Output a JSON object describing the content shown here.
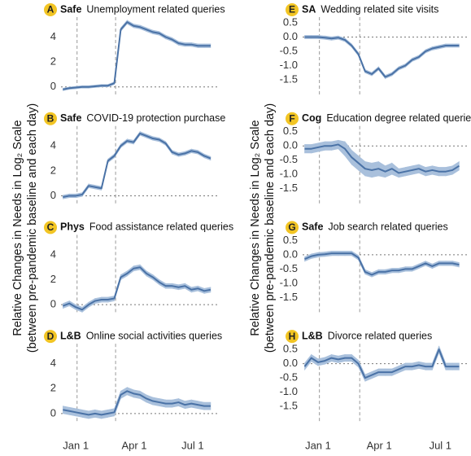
{
  "figure": {
    "ylabel": [
      "Relative Changes in Needs in Log₂ Scale",
      "(between pre-pandemic baseline and each day)"
    ]
  },
  "chart_data": [
    {
      "type": "line",
      "label": "A",
      "category": "Safe",
      "title": "Unemployment related queries",
      "color": "#4a72a6",
      "band_color": "#a9c0dc",
      "x": [
        -20,
        -10,
        0,
        10,
        20,
        30,
        40,
        50,
        60,
        70,
        80,
        90,
        100,
        110,
        120,
        130,
        140,
        150,
        160,
        170,
        180,
        190,
        200,
        210
      ],
      "values": [
        -0.2,
        -0.1,
        -0.05,
        0,
        0,
        0.05,
        0.1,
        0.1,
        0.3,
        4.6,
        5.2,
        4.9,
        4.8,
        4.6,
        4.4,
        4.3,
        4.0,
        3.8,
        3.5,
        3.4,
        3.4,
        3.3,
        3.3,
        3.3
      ],
      "errors": [
        0.1,
        0.1,
        0.1,
        0.1,
        0.1,
        0.1,
        0.1,
        0.1,
        0.1,
        0.15,
        0.15,
        0.15,
        0.15,
        0.15,
        0.15,
        0.15,
        0.15,
        0.15,
        0.15,
        0.15,
        0.15,
        0.15,
        0.15,
        0.15
      ],
      "xlim": [
        -23,
        224
      ],
      "ylim": [
        -0.8,
        5.6
      ],
      "yticks": [
        0,
        2,
        4
      ],
      "vlines": [
        2,
        62
      ],
      "hline": 0
    },
    {
      "type": "line",
      "label": "B",
      "category": "Safe",
      "title": "COVID-19 protection purchase",
      "color": "#4a72a6",
      "band_color": "#a9c0dc",
      "x": [
        -20,
        -10,
        0,
        10,
        20,
        30,
        40,
        50,
        60,
        70,
        80,
        90,
        100,
        110,
        120,
        130,
        140,
        150,
        160,
        170,
        180,
        190,
        200,
        210
      ],
      "values": [
        -0.1,
        0,
        0,
        0.1,
        0.8,
        0.7,
        0.6,
        2.8,
        3.2,
        4.0,
        4.4,
        4.3,
        5.0,
        4.8,
        4.6,
        4.5,
        4.2,
        3.5,
        3.3,
        3.4,
        3.6,
        3.5,
        3.2,
        3.0
      ],
      "errors": [
        0.15,
        0.15,
        0.15,
        0.15,
        0.15,
        0.15,
        0.15,
        0.15,
        0.15,
        0.15,
        0.15,
        0.15,
        0.15,
        0.15,
        0.15,
        0.15,
        0.15,
        0.15,
        0.15,
        0.15,
        0.15,
        0.15,
        0.15,
        0.15
      ],
      "xlim": [
        -23,
        224
      ],
      "ylim": [
        -0.8,
        5.6
      ],
      "yticks": [
        0,
        2,
        4
      ],
      "vlines": [
        2,
        62
      ],
      "hline": 0
    },
    {
      "type": "line",
      "label": "C",
      "category": "Phys",
      "title": "Food assistance related queries",
      "color": "#4a72a6",
      "band_color": "#a9c0dc",
      "x": [
        -20,
        -10,
        0,
        10,
        20,
        30,
        40,
        50,
        60,
        70,
        80,
        90,
        100,
        110,
        120,
        130,
        140,
        150,
        160,
        170,
        180,
        190,
        200,
        210
      ],
      "values": [
        -0.1,
        0.1,
        -0.2,
        -0.4,
        0,
        0.3,
        0.4,
        0.4,
        0.5,
        2.2,
        2.5,
        2.9,
        3.0,
        2.5,
        2.2,
        1.8,
        1.5,
        1.5,
        1.4,
        1.5,
        1.2,
        1.3,
        1.1,
        1.2
      ],
      "errors": [
        0.2,
        0.2,
        0.2,
        0.2,
        0.2,
        0.2,
        0.2,
        0.2,
        0.2,
        0.2,
        0.2,
        0.2,
        0.2,
        0.2,
        0.2,
        0.2,
        0.2,
        0.2,
        0.2,
        0.2,
        0.2,
        0.2,
        0.2,
        0.2
      ],
      "xlim": [
        -23,
        224
      ],
      "ylim": [
        -0.8,
        5.6
      ],
      "yticks": [
        0,
        2,
        4
      ],
      "vlines": [
        2,
        62
      ],
      "hline": 0
    },
    {
      "type": "line",
      "label": "D",
      "category": "L&B",
      "title": "Online social activities queries",
      "color": "#4a72a6",
      "band_color": "#a9c0dc",
      "x": [
        -20,
        -10,
        0,
        10,
        20,
        30,
        40,
        50,
        60,
        70,
        80,
        90,
        100,
        110,
        120,
        130,
        140,
        150,
        160,
        170,
        180,
        190,
        200,
        210
      ],
      "values": [
        0.3,
        0.2,
        0.1,
        0,
        -0.1,
        0,
        -0.1,
        0,
        0.1,
        1.5,
        1.8,
        1.6,
        1.5,
        1.2,
        1.0,
        0.9,
        0.8,
        0.8,
        0.9,
        0.7,
        0.8,
        0.7,
        0.6,
        0.6
      ],
      "errors": [
        0.3,
        0.3,
        0.3,
        0.3,
        0.3,
        0.3,
        0.3,
        0.3,
        0.3,
        0.3,
        0.3,
        0.3,
        0.3,
        0.3,
        0.3,
        0.3,
        0.3,
        0.3,
        0.3,
        0.3,
        0.3,
        0.3,
        0.3,
        0.3
      ],
      "xlim": [
        -23,
        224
      ],
      "ylim": [
        -0.8,
        5.6
      ],
      "yticks": [
        0,
        2,
        4
      ],
      "vlines": [
        2,
        62
      ],
      "hline": 0,
      "xticks": [
        {
          "value": 0,
          "label": "Jan 1"
        },
        {
          "value": 91,
          "label": "Apr 1"
        },
        {
          "value": 182,
          "label": "Jul 1"
        }
      ]
    },
    {
      "type": "line",
      "label": "E",
      "category": "SA",
      "title": "Wedding related site visits",
      "color": "#4a72a6",
      "band_color": "#a9c0dc",
      "x": [
        -20,
        -10,
        0,
        10,
        20,
        30,
        40,
        50,
        60,
        70,
        80,
        90,
        100,
        110,
        120,
        130,
        140,
        150,
        160,
        170,
        180,
        190,
        200,
        210
      ],
      "values": [
        0,
        0,
        0,
        -0.02,
        -0.05,
        -0.02,
        -0.1,
        -0.3,
        -0.6,
        -1.2,
        -1.3,
        -1.1,
        -1.4,
        -1.3,
        -1.1,
        -1.0,
        -0.8,
        -0.7,
        -0.5,
        -0.4,
        -0.35,
        -0.3,
        -0.3,
        -0.3
      ],
      "errors": [
        0.06,
        0.06,
        0.06,
        0.06,
        0.06,
        0.06,
        0.06,
        0.06,
        0.06,
        0.06,
        0.06,
        0.06,
        0.06,
        0.06,
        0.06,
        0.06,
        0.06,
        0.06,
        0.06,
        0.06,
        0.06,
        0.06,
        0.06,
        0.06
      ],
      "xlim": [
        -23,
        224
      ],
      "ylim": [
        -2.1,
        0.7
      ],
      "yticks": [
        0.5,
        {
          "value": 0,
          "label": "0.0"
        },
        -0.5,
        {
          "value": -1,
          "label": "-1.0"
        },
        -1.5
      ],
      "vlines": [
        2,
        62
      ],
      "hline": 0
    },
    {
      "type": "line",
      "label": "F",
      "category": "Cog",
      "title": "Education degree related queries",
      "color": "#4a72a6",
      "band_color": "#a9c0dc",
      "x": [
        -20,
        -10,
        0,
        10,
        20,
        30,
        40,
        50,
        60,
        70,
        80,
        90,
        100,
        110,
        120,
        130,
        140,
        150,
        160,
        170,
        180,
        190,
        200,
        210
      ],
      "values": [
        -0.1,
        -0.1,
        -0.05,
        0,
        0,
        0.05,
        -0.1,
        -0.4,
        -0.6,
        -0.8,
        -0.85,
        -0.8,
        -0.9,
        -0.8,
        -0.95,
        -0.9,
        -0.85,
        -0.8,
        -0.9,
        -0.85,
        -0.9,
        -0.9,
        -0.85,
        -0.7
      ],
      "errors": [
        0.15,
        0.15,
        0.15,
        0.15,
        0.15,
        0.15,
        0.25,
        0.25,
        0.25,
        0.25,
        0.25,
        0.25,
        0.2,
        0.2,
        0.15,
        0.15,
        0.15,
        0.15,
        0.15,
        0.15,
        0.15,
        0.15,
        0.15,
        0.15
      ],
      "xlim": [
        -23,
        224
      ],
      "ylim": [
        -2.1,
        0.7
      ],
      "yticks": [
        0.5,
        {
          "value": 0,
          "label": "0.0"
        },
        -0.5,
        {
          "value": -1,
          "label": "-1.0"
        },
        -1.5
      ],
      "vlines": [
        2,
        62
      ],
      "hline": 0
    },
    {
      "type": "line",
      "label": "G",
      "category": "Safe",
      "title": "Job search related queries",
      "color": "#4a72a6",
      "band_color": "#a9c0dc",
      "x": [
        -20,
        -10,
        0,
        10,
        20,
        30,
        40,
        50,
        60,
        70,
        80,
        90,
        100,
        110,
        120,
        130,
        140,
        150,
        160,
        170,
        180,
        190,
        200,
        210
      ],
      "values": [
        -0.15,
        -0.05,
        0,
        0.02,
        0.05,
        0.05,
        0.05,
        0.05,
        -0.1,
        -0.6,
        -0.7,
        -0.6,
        -0.6,
        -0.55,
        -0.55,
        -0.5,
        -0.5,
        -0.4,
        -0.3,
        -0.4,
        -0.3,
        -0.3,
        -0.3,
        -0.35
      ],
      "errors": [
        0.08,
        0.08,
        0.08,
        0.08,
        0.08,
        0.08,
        0.08,
        0.08,
        0.08,
        0.08,
        0.08,
        0.08,
        0.08,
        0.08,
        0.08,
        0.08,
        0.08,
        0.08,
        0.08,
        0.08,
        0.08,
        0.08,
        0.08,
        0.08
      ],
      "xlim": [
        -23,
        224
      ],
      "ylim": [
        -2.1,
        0.7
      ],
      "yticks": [
        0.5,
        {
          "value": 0,
          "label": "0.0"
        },
        -0.5,
        {
          "value": -1,
          "label": "-1.0"
        },
        -1.5
      ],
      "vlines": [
        2,
        62
      ],
      "hline": 0
    },
    {
      "type": "line",
      "label": "H",
      "category": "L&B",
      "title": "Divorce related queries",
      "color": "#4a72a6",
      "band_color": "#a9c0dc",
      "x": [
        -20,
        -10,
        0,
        10,
        20,
        30,
        40,
        50,
        60,
        70,
        80,
        90,
        100,
        110,
        120,
        130,
        140,
        150,
        160,
        170,
        180,
        190,
        200,
        210
      ],
      "values": [
        -0.1,
        0.2,
        0.05,
        0.1,
        0.2,
        0.15,
        0.2,
        0.2,
        0,
        -0.5,
        -0.4,
        -0.3,
        -0.3,
        -0.3,
        -0.2,
        -0.1,
        -0.1,
        -0.05,
        -0.1,
        -0.1,
        0.5,
        -0.1,
        -0.1,
        -0.1
      ],
      "errors": [
        0.12,
        0.12,
        0.12,
        0.12,
        0.12,
        0.12,
        0.12,
        0.12,
        0.12,
        0.12,
        0.12,
        0.12,
        0.12,
        0.12,
        0.12,
        0.12,
        0.12,
        0.12,
        0.12,
        0.12,
        0.12,
        0.12,
        0.12,
        0.12
      ],
      "xlim": [
        -23,
        224
      ],
      "ylim": [
        -2.1,
        0.7
      ],
      "yticks": [
        0.5,
        {
          "value": 0,
          "label": "0.0"
        },
        -0.5,
        {
          "value": -1,
          "label": "-1.0"
        },
        -1.5
      ],
      "vlines": [
        2,
        62
      ],
      "hline": 0,
      "xticks": [
        {
          "value": 0,
          "label": "Jan 1"
        },
        {
          "value": 91,
          "label": "Apr 1"
        },
        {
          "value": 182,
          "label": "Jul 1"
        }
      ]
    }
  ]
}
